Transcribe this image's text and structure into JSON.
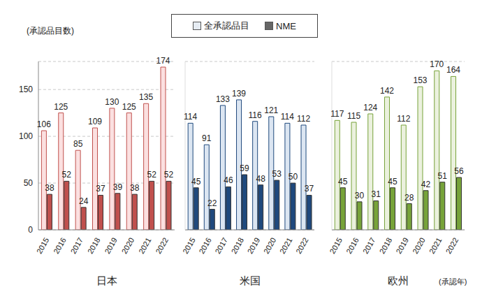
{
  "chart_data": [
    {
      "type": "bar",
      "title": "日本",
      "y_label": "(承認品目数)",
      "legend": "top",
      "categories": [
        "2015",
        "2016",
        "2017",
        "2018",
        "2019",
        "2020",
        "2021",
        "2022"
      ],
      "series": [
        {
          "name": "全承認品目",
          "color": "#fbe0e0",
          "values": [
            106,
            125,
            85,
            109,
            130,
            125,
            135,
            174
          ]
        },
        {
          "name": "NME",
          "color": "#c0504d",
          "values": [
            38,
            52,
            24,
            37,
            39,
            38,
            52,
            52
          ]
        }
      ],
      "ylim": [
        0,
        180
      ],
      "yticks": [
        0,
        50,
        100,
        150
      ],
      "grid": true,
      "data_labels": true
    },
    {
      "type": "bar",
      "title": "米国",
      "tick_labels": "x",
      "categories": [
        "2015",
        "2016",
        "2017",
        "2018",
        "2019",
        "2020",
        "2021",
        "2022"
      ],
      "series": [
        {
          "name": "全承認品目",
          "color": "#dce6f2",
          "values": [
            114,
            91,
            133,
            139,
            116,
            121,
            114,
            112
          ]
        },
        {
          "name": "NME",
          "color": "#1f497d",
          "values": [
            45,
            22,
            46,
            59,
            48,
            53,
            50,
            37
          ]
        }
      ],
      "ylim": [
        0,
        180
      ],
      "yticks": [
        0,
        50,
        100,
        150
      ],
      "grid": true,
      "data_labels": true
    },
    {
      "type": "bar",
      "title": "欧州",
      "x_label": "(承認年)",
      "tick_labels": "x",
      "categories": [
        "2015",
        "2016",
        "2017",
        "2018",
        "2019",
        "2020",
        "2021",
        "2022"
      ],
      "series": [
        {
          "name": "全承認品目",
          "color": "#ebf1de",
          "values": [
            117,
            115,
            124,
            142,
            112,
            153,
            170,
            164
          ]
        },
        {
          "name": "NME",
          "color": "#77a33a",
          "values": [
            45,
            30,
            31,
            45,
            28,
            42,
            51,
            56
          ]
        }
      ],
      "ylim": [
        0,
        180
      ],
      "yticks": [
        0,
        50,
        100,
        150
      ],
      "grid": true,
      "data_labels": true
    }
  ]
}
